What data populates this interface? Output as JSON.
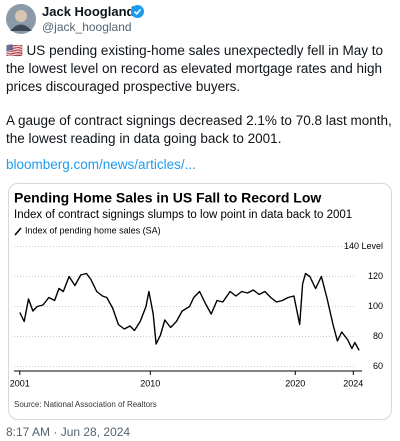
{
  "tweet": {
    "name": "Jack Hoogland",
    "handle": "@jack_hoogland",
    "paragraphs": [
      "🇺🇸 US pending existing-home sales unexpectedly fell in May to the lowest level on record as elevated mortgage rates and high prices discouraged prospective buyers.",
      "A gauge of contract signings decreased 2.1% to 70.8 last month, the lowest reading in data going back to 2001."
    ],
    "link": "bloomberg.com/news/articles/...",
    "timestamp": "8:17 AM · Jun 28, 2024"
  },
  "chart_data": {
    "type": "line",
    "title": "Pending Home Sales in US Fall to Record Low",
    "subtitle": "Index of contract signings slumps to low point in data back to 2001",
    "source": "Source: National Association of Realtors",
    "x": [
      2001.0,
      2001.3,
      2001.6,
      2001.9,
      2002.2,
      2002.6,
      2003.0,
      2003.4,
      2003.7,
      2004.0,
      2004.4,
      2004.8,
      2005.2,
      2005.6,
      2005.9,
      2006.3,
      2006.7,
      2007.0,
      2007.4,
      2007.8,
      2008.2,
      2008.6,
      2008.9,
      2009.3,
      2009.7,
      2009.9,
      2010.2,
      2010.4,
      2010.7,
      2011.0,
      2011.4,
      2011.8,
      2012.2,
      2012.7,
      2013.0,
      2013.4,
      2013.8,
      2014.2,
      2014.6,
      2015.0,
      2015.5,
      2015.9,
      2016.3,
      2016.7,
      2017.1,
      2017.5,
      2017.9,
      2018.3,
      2018.7,
      2019.1,
      2019.5,
      2019.9,
      2020.3,
      2020.5,
      2020.7,
      2021.0,
      2021.4,
      2021.8,
      2022.2,
      2022.6,
      2022.9,
      2023.2,
      2023.6,
      2023.9,
      2024.1,
      2024.4
    ],
    "series": [
      {
        "name": "Index of pending home sales (SA)",
        "color": "#000000",
        "values": [
          96,
          90,
          105,
          97,
          100,
          101,
          106,
          104,
          112,
          110,
          120,
          114,
          121,
          122,
          118,
          110,
          107,
          106,
          99,
          88,
          85,
          87,
          84,
          90,
          100,
          110,
          95,
          75,
          81,
          91,
          86,
          90,
          97,
          100,
          106,
          110,
          102,
          95,
          104,
          103,
          110,
          107,
          110,
          109,
          111,
          108,
          110,
          106,
          103,
          104,
          106,
          107,
          88,
          115,
          122,
          120,
          112,
          120,
          105,
          88,
          77,
          83,
          78,
          72,
          76,
          70.8
        ]
      }
    ],
    "xlim": [
      2000.6,
      2024.6
    ],
    "xticks": [
      2001,
      2010,
      2020,
      2024
    ],
    "ylim": [
      57,
      143
    ],
    "yticks": [
      60,
      80,
      100,
      120,
      {
        "value": 140,
        "label": "140 Level"
      }
    ],
    "grid": true
  }
}
